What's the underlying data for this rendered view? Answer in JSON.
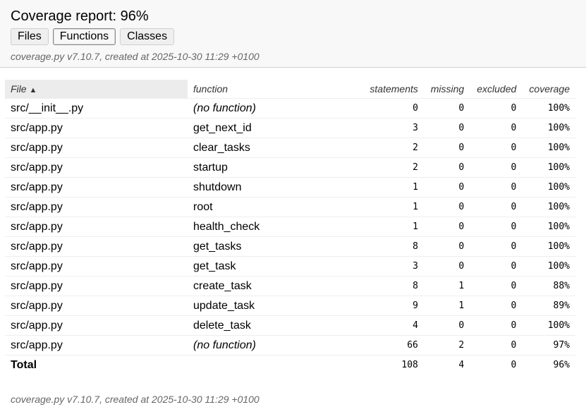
{
  "title": "Coverage report: 96%",
  "tabs": [
    {
      "label": "Files",
      "active": false
    },
    {
      "label": "Functions",
      "active": true
    },
    {
      "label": "Classes",
      "active": false
    }
  ],
  "meta": "coverage.py v7.10.7, created at 2025-10-30 11:29 +0100",
  "table": {
    "headers": {
      "file": "File",
      "sort_indicator": "▲",
      "function": "function",
      "statements": "statements",
      "missing": "missing",
      "excluded": "excluded",
      "coverage": "coverage"
    },
    "rows": [
      {
        "file": "src/__init__.py",
        "function": "(no function)",
        "statements": "0",
        "missing": "0",
        "excluded": "0",
        "coverage": "100%"
      },
      {
        "file": "src/app.py",
        "function": "get_next_id",
        "statements": "3",
        "missing": "0",
        "excluded": "0",
        "coverage": "100%"
      },
      {
        "file": "src/app.py",
        "function": "clear_tasks",
        "statements": "2",
        "missing": "0",
        "excluded": "0",
        "coverage": "100%"
      },
      {
        "file": "src/app.py",
        "function": "startup",
        "statements": "2",
        "missing": "0",
        "excluded": "0",
        "coverage": "100%"
      },
      {
        "file": "src/app.py",
        "function": "shutdown",
        "statements": "1",
        "missing": "0",
        "excluded": "0",
        "coverage": "100%"
      },
      {
        "file": "src/app.py",
        "function": "root",
        "statements": "1",
        "missing": "0",
        "excluded": "0",
        "coverage": "100%"
      },
      {
        "file": "src/app.py",
        "function": "health_check",
        "statements": "1",
        "missing": "0",
        "excluded": "0",
        "coverage": "100%"
      },
      {
        "file": "src/app.py",
        "function": "get_tasks",
        "statements": "8",
        "missing": "0",
        "excluded": "0",
        "coverage": "100%"
      },
      {
        "file": "src/app.py",
        "function": "get_task",
        "statements": "3",
        "missing": "0",
        "excluded": "0",
        "coverage": "100%"
      },
      {
        "file": "src/app.py",
        "function": "create_task",
        "statements": "8",
        "missing": "1",
        "excluded": "0",
        "coverage": "88%"
      },
      {
        "file": "src/app.py",
        "function": "update_task",
        "statements": "9",
        "missing": "1",
        "excluded": "0",
        "coverage": "89%"
      },
      {
        "file": "src/app.py",
        "function": "delete_task",
        "statements": "4",
        "missing": "0",
        "excluded": "0",
        "coverage": "100%"
      },
      {
        "file": "src/app.py",
        "function": "(no function)",
        "statements": "66",
        "missing": "2",
        "excluded": "0",
        "coverage": "97%"
      }
    ],
    "total": {
      "label": "Total",
      "statements": "108",
      "missing": "4",
      "excluded": "0",
      "coverage": "96%"
    }
  },
  "footer": "coverage.py v7.10.7, created at 2025-10-30 11:29 +0100"
}
